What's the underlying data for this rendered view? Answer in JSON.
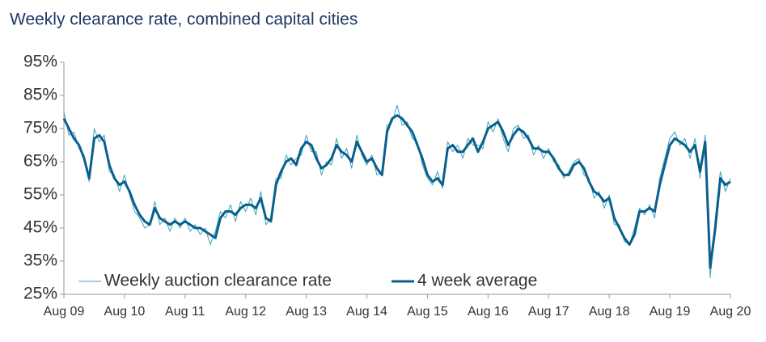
{
  "chart_data": {
    "type": "line",
    "title": "Weekly clearance rate, combined capital cities",
    "x": [
      0,
      1,
      2,
      3,
      4,
      5,
      6,
      7,
      8,
      9,
      10,
      11,
      12,
      13,
      14,
      15,
      16,
      17,
      18,
      19,
      20,
      21,
      22,
      23,
      24,
      25,
      26,
      27,
      28,
      29,
      30,
      31,
      32,
      33,
      34,
      35,
      36,
      37,
      38,
      39,
      40,
      41,
      42,
      43,
      44,
      45,
      46,
      47,
      48,
      49,
      50,
      51,
      52,
      53,
      54,
      55,
      56,
      57,
      58,
      59,
      60,
      61,
      62,
      63,
      64,
      65,
      66,
      67,
      68,
      69,
      70,
      71,
      72,
      73,
      74,
      75,
      76,
      77,
      78,
      79,
      80,
      81,
      82,
      83,
      84,
      85,
      86,
      87,
      88,
      89,
      90,
      91,
      92,
      93,
      94,
      95,
      96,
      97,
      98,
      99,
      100,
      101,
      102,
      103,
      104,
      105,
      106,
      107,
      108,
      109,
      110,
      111,
      112,
      113,
      114,
      115,
      116,
      117,
      118,
      119,
      120,
      121,
      122,
      123,
      124,
      125,
      126,
      127,
      128,
      129,
      130,
      131,
      132
    ],
    "xlim": [
      0,
      132
    ],
    "xticks": [
      {
        "value": 0,
        "label": "Aug 09"
      },
      {
        "value": 12,
        "label": "Aug 10"
      },
      {
        "value": 24,
        "label": "Aug 11"
      },
      {
        "value": 36,
        "label": "Aug 12"
      },
      {
        "value": 48,
        "label": "Aug 13"
      },
      {
        "value": 60,
        "label": "Aug 14"
      },
      {
        "value": 72,
        "label": "Aug 15"
      },
      {
        "value": 84,
        "label": "Aug 16"
      },
      {
        "value": 96,
        "label": "Aug 17"
      },
      {
        "value": 108,
        "label": "Aug 18"
      },
      {
        "value": 120,
        "label": "Aug 19"
      },
      {
        "value": 132,
        "label": "Aug 20"
      }
    ],
    "ylim": [
      25,
      95
    ],
    "yticks": [
      {
        "value": 25,
        "label": "25%"
      },
      {
        "value": 35,
        "label": "35%"
      },
      {
        "value": 45,
        "label": "45%"
      },
      {
        "value": 55,
        "label": "55%"
      },
      {
        "value": 65,
        "label": "65%"
      },
      {
        "value": 75,
        "label": "75%"
      },
      {
        "value": 85,
        "label": "85%"
      },
      {
        "value": 95,
        "label": "95%"
      }
    ],
    "series": [
      {
        "name": "Weekly auction clearance rate",
        "color": "#3aa3bd",
        "width": 1,
        "values": [
          80,
          73,
          74,
          69,
          67,
          59,
          75,
          71,
          73,
          62,
          61,
          56,
          61,
          55,
          50,
          48,
          45,
          46,
          53,
          46,
          48,
          44,
          48,
          45,
          48,
          44,
          46,
          43,
          45,
          40,
          44,
          50,
          48,
          52,
          47,
          53,
          50,
          54,
          49,
          56,
          46,
          48,
          60,
          60,
          67,
          64,
          66,
          67,
          73,
          68,
          68,
          61,
          65,
          64,
          72,
          66,
          69,
          63,
          73,
          67,
          64,
          67,
          61,
          62,
          76,
          77,
          82,
          76,
          77,
          72,
          71,
          64,
          60,
          58,
          62,
          57,
          71,
          68,
          70,
          66,
          72,
          70,
          70,
          69,
          77,
          74,
          78,
          72,
          68,
          75,
          76,
          72,
          73,
          67,
          70,
          66,
          69,
          65,
          64,
          60,
          62,
          65,
          66,
          61,
          60,
          54,
          56,
          51,
          55,
          46,
          46,
          41,
          40,
          45,
          51,
          49,
          52,
          48,
          60,
          66,
          72,
          74,
          70,
          72,
          66,
          72,
          60,
          73,
          30,
          48,
          62,
          56,
          60
        ]
      },
      {
        "name": "4 week average",
        "color": "#0b5f8c",
        "width": 3,
        "values": [
          78,
          75,
          72,
          70,
          66,
          60,
          72,
          73,
          71,
          64,
          60,
          58,
          59,
          56,
          52,
          49,
          47,
          46,
          51,
          48,
          47,
          46,
          47,
          46,
          47,
          46,
          45,
          45,
          44,
          43,
          42,
          48,
          50,
          50,
          49,
          51,
          52,
          52,
          51,
          54,
          48,
          47,
          58,
          62,
          65,
          66,
          64,
          69,
          71,
          70,
          66,
          63,
          64,
          66,
          70,
          68,
          67,
          65,
          71,
          68,
          65,
          66,
          63,
          61,
          74,
          78,
          79,
          78,
          76,
          74,
          70,
          66,
          61,
          59,
          60,
          58,
          69,
          70,
          68,
          68,
          70,
          72,
          68,
          71,
          75,
          76,
          77,
          74,
          70,
          73,
          75,
          74,
          72,
          69,
          69,
          68,
          68,
          66,
          63,
          61,
          61,
          64,
          65,
          63,
          59,
          56,
          55,
          53,
          54,
          48,
          45,
          42,
          40,
          43,
          50,
          50,
          51,
          50,
          58,
          64,
          70,
          72,
          71,
          70,
          68,
          70,
          62,
          71,
          33,
          45,
          60,
          58,
          59
        ]
      }
    ],
    "legend": "lower-center"
  }
}
